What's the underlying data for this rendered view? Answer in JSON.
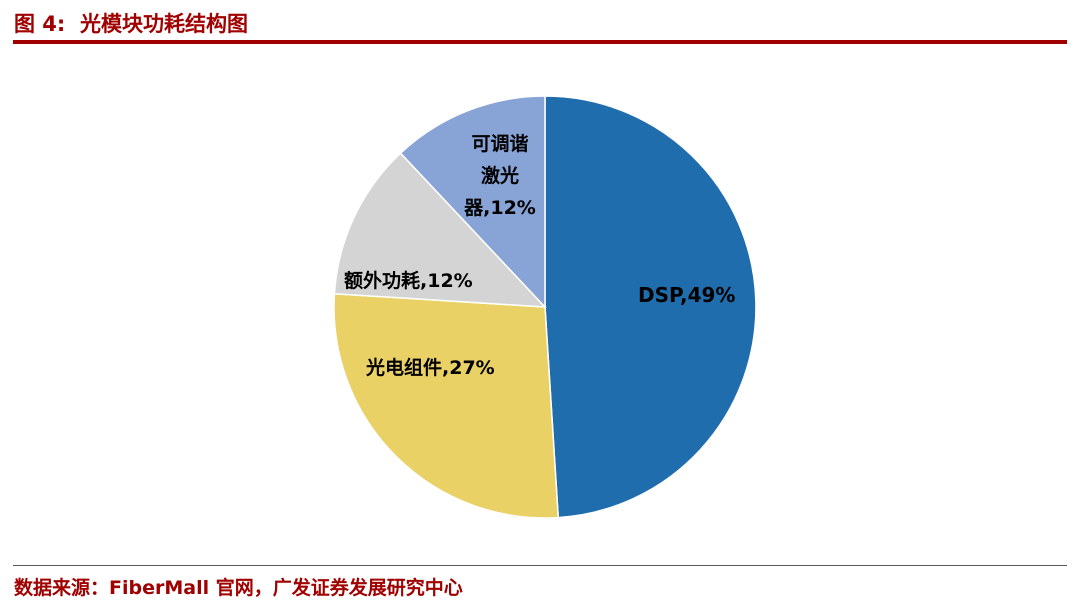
{
  "header": {
    "title": "图 4:  光模块功耗结构图"
  },
  "footer": {
    "source": "数据来源：FiberMall 官网，广发证券发展研究中心"
  },
  "colors": {
    "accent_red": "#A00000",
    "slice_dsp": "#1F6DAD",
    "slice_photoelectric": "#E9D165",
    "slice_extra_power": "#D4D4D4",
    "slice_tunable_laser": "#88A3D6"
  },
  "chart_data": {
    "type": "pie",
    "title": "光模块功耗结构图",
    "unit": "%",
    "start_angle_deg": 0,
    "direction": "clockwise",
    "legend_position": "none",
    "slices": [
      {
        "id": "dsp",
        "label": "DSP",
        "value": 49,
        "display": "DSP,49%",
        "color": "#1F6DAD"
      },
      {
        "id": "photoelectric",
        "label": "光电组件",
        "value": 27,
        "display": "光电组件,27%",
        "color": "#E9D165"
      },
      {
        "id": "extra-power",
        "label": "额外功耗",
        "value": 12,
        "display": "额外功耗,12%",
        "color": "#D4D4D4"
      },
      {
        "id": "tunable-laser",
        "label": "可调谐激光器",
        "value": 12,
        "display": "可调谐激光器,12%",
        "display_lines": [
          "可调谐",
          "激光",
          "器,12%"
        ],
        "color": "#88A3D6"
      }
    ]
  }
}
